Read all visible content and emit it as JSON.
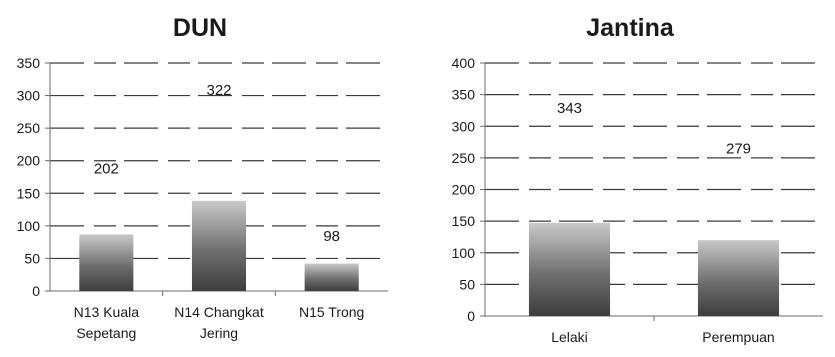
{
  "chart_data": [
    {
      "type": "bar",
      "title": "DUN",
      "categories": [
        "N13 Kuala Sepetang",
        "N14 Changkat Jering",
        "N15 Trong"
      ],
      "category_lines": [
        [
          "N13 Kuala",
          "Sepetang"
        ],
        [
          "N14 Changkat",
          "Jering"
        ],
        [
          "N15 Trong"
        ]
      ],
      "values": [
        202,
        322,
        98
      ],
      "ylim": [
        0,
        350
      ],
      "yticks": [
        0,
        50,
        100,
        150,
        200,
        250,
        300,
        350
      ],
      "grid": true,
      "bar_color": "#6f6f6f"
    },
    {
      "type": "bar",
      "title": "Jantina",
      "categories": [
        "Lelaki",
        "Perempuan"
      ],
      "category_lines": [
        [
          "Lelaki"
        ],
        [
          "Perempuan"
        ]
      ],
      "values": [
        343,
        279
      ],
      "ylim": [
        0,
        400
      ],
      "yticks": [
        0,
        50,
        100,
        150,
        200,
        250,
        300,
        350,
        400
      ],
      "grid": true,
      "bar_color": "#6f6f6f"
    }
  ]
}
